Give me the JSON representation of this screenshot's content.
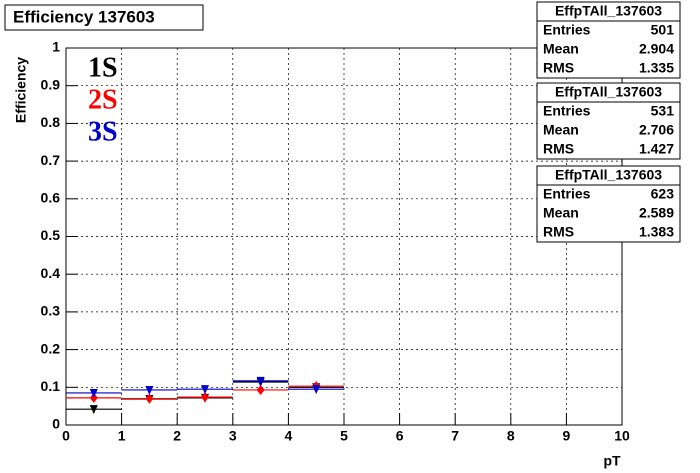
{
  "chart_data": {
    "type": "errorpoints",
    "title": "Efficiency 137603",
    "y_label": "Efficiency",
    "x_label": "pT",
    "x": [
      0.5,
      1.5,
      2.5,
      3.5,
      4.5
    ],
    "bins": [
      0,
      1,
      2,
      3,
      4,
      5
    ],
    "series": [
      {
        "name": "1S",
        "color": "#000000",
        "marker": "triangle-down",
        "values": [
          0.042,
          0.069,
          0.072,
          0.114,
          0.1
        ]
      },
      {
        "name": "2S",
        "color": "#ff0000",
        "marker": "diamond",
        "values": [
          0.072,
          0.07,
          0.074,
          0.093,
          0.103
        ]
      },
      {
        "name": "3S",
        "color": "#0000cc",
        "marker": "triangle-down",
        "values": [
          0.085,
          0.093,
          0.095,
          0.117,
          0.095
        ]
      }
    ],
    "xlim": [
      0,
      10
    ],
    "ylim": [
      0,
      1
    ],
    "xticks": [
      0,
      1,
      2,
      3,
      4,
      5,
      6,
      7,
      8,
      9,
      10
    ],
    "yticks": [
      0,
      0.1,
      0.2,
      0.3,
      0.4,
      0.5,
      0.6,
      0.7,
      0.8,
      0.9,
      1
    ],
    "grid": true,
    "stats": [
      {
        "title": "EffpTAll_137603",
        "rows": [
          {
            "label": "Entries",
            "value": 501
          },
          {
            "label": "Mean",
            "value": 2.904
          },
          {
            "label": "RMS",
            "value": 1.335
          }
        ]
      },
      {
        "title": "EffpTAll_137603",
        "rows": [
          {
            "label": "Entries",
            "value": 531
          },
          {
            "label": "Mean",
            "value": 2.706
          },
          {
            "label": "RMS",
            "value": 1.427
          }
        ]
      },
      {
        "title": "EffpTAll_137603",
        "rows": [
          {
            "label": "Entries",
            "value": 623
          },
          {
            "label": "Mean",
            "value": 2.589
          },
          {
            "label": "RMS",
            "value": 1.383
          }
        ]
      }
    ]
  }
}
